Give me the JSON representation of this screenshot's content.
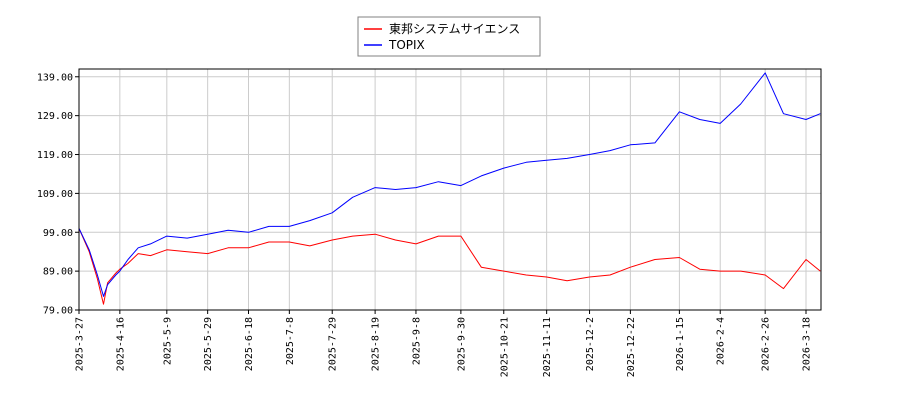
{
  "chart_data": {
    "type": "line",
    "title": "",
    "xlabel": "",
    "ylabel": "",
    "ylim": [
      79.0,
      141.0
    ],
    "grid": true,
    "legend_position": "top-center",
    "y_ticks": [
      "79.00",
      "89.00",
      "99.00",
      "109.00",
      "119.00",
      "129.00",
      "139.00"
    ],
    "x_ticks": [
      "2025-3-27",
      "2025-4-16",
      "2025-5-9",
      "2025-5-29",
      "2025-6-18",
      "2025-7-8",
      "2025-7-29",
      "2025-8-19",
      "2025-9-8",
      "2025-9-30",
      "2025-10-21",
      "2025-11-11",
      "2025-12-2",
      "2025-12-22",
      "2026-1-15",
      "2026-2-4",
      "2026-2-26",
      "2026-3-18"
    ],
    "x_dates": [
      "2025-03-27",
      "2025-04-01",
      "2025-04-05",
      "2025-04-08",
      "2025-04-10",
      "2025-04-14",
      "2025-04-16",
      "2025-04-20",
      "2025-04-25",
      "2025-05-01",
      "2025-05-09",
      "2025-05-19",
      "2025-05-29",
      "2025-06-08",
      "2025-06-18",
      "2025-06-28",
      "2025-07-08",
      "2025-07-18",
      "2025-07-29",
      "2025-08-08",
      "2025-08-19",
      "2025-08-29",
      "2025-09-08",
      "2025-09-19",
      "2025-09-30",
      "2025-10-10",
      "2025-10-21",
      "2025-11-01",
      "2025-11-11",
      "2025-11-21",
      "2025-12-02",
      "2025-12-12",
      "2025-12-22",
      "2026-01-03",
      "2026-01-15",
      "2026-01-25",
      "2026-02-04",
      "2026-02-14",
      "2026-02-26",
      "2026-03-07",
      "2026-03-18",
      "2026-03-25"
    ],
    "series": [
      {
        "name": "東邦システムサイエンス",
        "color": "#ff0000",
        "values": [
          100.0,
          94.0,
          87.0,
          80.5,
          86.0,
          88.5,
          89.5,
          91.0,
          93.5,
          93.0,
          94.5,
          94.0,
          93.5,
          95.0,
          95.0,
          96.5,
          96.5,
          95.5,
          97.0,
          98.0,
          98.5,
          97.0,
          96.0,
          98.0,
          98.0,
          90.0,
          89.0,
          88.0,
          87.5,
          86.5,
          87.5,
          88.0,
          90.0,
          92.0,
          92.5,
          89.5,
          89.0,
          89.0,
          88.0,
          84.5,
          92.0,
          89.0
        ]
      },
      {
        "name": "TOPIX",
        "color": "#0000ff",
        "values": [
          100.0,
          94.5,
          88.0,
          82.5,
          85.5,
          88.0,
          89.0,
          92.0,
          95.0,
          96.0,
          98.0,
          97.5,
          98.5,
          99.5,
          99.0,
          100.5,
          100.5,
          102.0,
          104.0,
          108.0,
          110.5,
          110.0,
          110.5,
          112.0,
          111.0,
          113.5,
          115.5,
          117.0,
          117.5,
          118.0,
          119.0,
          120.0,
          121.5,
          122.0,
          130.0,
          128.0,
          127.0,
          132.0,
          140.0,
          129.5,
          128.0,
          129.5
        ]
      }
    ]
  }
}
